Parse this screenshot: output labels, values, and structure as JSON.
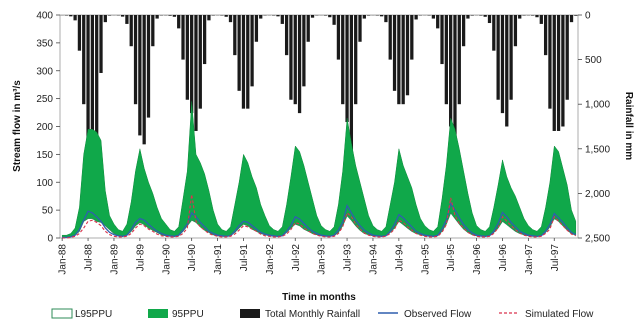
{
  "chart_data": {
    "type": "line",
    "xlabel": "Time in months",
    "ylabel": "Stream flow in m³/s",
    "y2label": "Rainfall in mm",
    "ylim": [
      0,
      400
    ],
    "yticks": [
      0,
      50,
      100,
      150,
      200,
      250,
      300,
      350,
      400
    ],
    "y2lim": [
      0,
      2500
    ],
    "y2ticks": [
      "0",
      "500",
      "1,000",
      "1,500",
      "2,000",
      "2,500"
    ],
    "y2_inverted": true,
    "x_tick_labels": [
      "Jan-88",
      "Jul-88",
      "Jan-89",
      "Jul-89",
      "Jan-90",
      "Jul-90",
      "Jan-91",
      "Jul-91",
      "Jan-92",
      "Jul-92",
      "Jan-93",
      "Jul-93",
      "Jan-94",
      "Jul-94",
      "Jan-95",
      "Jul-95",
      "Jan-96",
      "Jul-96",
      "Jan-97",
      "Jul-97"
    ],
    "legend": [
      "L95PPU",
      "95PPU",
      "Total Monthly Rainfall",
      "Observed Flow",
      "Simulated Flow"
    ],
    "legend_placement": "bottom",
    "series_colors": {
      "l95ppu": "#2e8b57",
      "band": "#10a84a",
      "rainfall": "#1a1a1a",
      "observed": "#2f5fae",
      "simulated": "#d9334d"
    },
    "months": [
      "Jan-88",
      "Feb-88",
      "Mar-88",
      "Apr-88",
      "May-88",
      "Jun-88",
      "Jul-88",
      "Aug-88",
      "Sep-88",
      "Oct-88",
      "Nov-88",
      "Dec-88",
      "Jan-89",
      "Feb-89",
      "Mar-89",
      "Apr-89",
      "May-89",
      "Jun-89",
      "Jul-89",
      "Aug-89",
      "Sep-89",
      "Oct-89",
      "Nov-89",
      "Dec-89",
      "Jan-90",
      "Feb-90",
      "Mar-90",
      "Apr-90",
      "May-90",
      "Jun-90",
      "Jul-90",
      "Aug-90",
      "Sep-90",
      "Oct-90",
      "Nov-90",
      "Dec-90",
      "Jan-91",
      "Feb-91",
      "Mar-91",
      "Apr-91",
      "May-91",
      "Jun-91",
      "Jul-91",
      "Aug-91",
      "Sep-91",
      "Oct-91",
      "Nov-91",
      "Dec-91",
      "Jan-92",
      "Feb-92",
      "Mar-92",
      "Apr-92",
      "May-92",
      "Jun-92",
      "Jul-92",
      "Aug-92",
      "Sep-92",
      "Oct-92",
      "Nov-92",
      "Dec-92",
      "Jan-93",
      "Feb-93",
      "Mar-93",
      "Apr-93",
      "May-93",
      "Jun-93",
      "Jul-93",
      "Aug-93",
      "Sep-93",
      "Oct-93",
      "Nov-93",
      "Dec-93",
      "Jan-94",
      "Feb-94",
      "Mar-94",
      "Apr-94",
      "May-94",
      "Jun-94",
      "Jul-94",
      "Aug-94",
      "Sep-94",
      "Oct-94",
      "Nov-94",
      "Dec-94",
      "Jan-95",
      "Feb-95",
      "Mar-95",
      "Apr-95",
      "May-95",
      "Jun-95",
      "Jul-95",
      "Aug-95",
      "Sep-95",
      "Oct-95",
      "Nov-95",
      "Dec-95",
      "Jan-96",
      "Feb-96",
      "Mar-96",
      "Apr-96",
      "May-96",
      "Jun-96",
      "Jul-96",
      "Aug-96",
      "Sep-96",
      "Oct-96",
      "Nov-96",
      "Dec-96",
      "Jan-97",
      "Feb-97",
      "Mar-97",
      "Apr-97",
      "May-97",
      "Jun-97",
      "Jul-97",
      "Aug-97",
      "Sep-97",
      "Oct-97",
      "Nov-97",
      "Dec-97"
    ],
    "rainfall": [
      2,
      5,
      15,
      60,
      400,
      1000,
      1500,
      1550,
      1350,
      650,
      80,
      6,
      2,
      4,
      18,
      100,
      350,
      1000,
      1350,
      1450,
      1150,
      350,
      40,
      4,
      3,
      8,
      20,
      150,
      500,
      950,
      1100,
      1300,
      1050,
      550,
      60,
      5,
      2,
      5,
      20,
      80,
      450,
      850,
      1050,
      1050,
      800,
      300,
      40,
      4,
      2,
      5,
      15,
      100,
      450,
      950,
      1000,
      1100,
      800,
      300,
      30,
      4,
      2,
      6,
      25,
      110,
      500,
      1000,
      1200,
      1550,
      1000,
      300,
      40,
      6,
      2,
      5,
      15,
      80,
      500,
      850,
      1000,
      1000,
      900,
      500,
      50,
      4,
      2,
      5,
      40,
      150,
      550,
      1000,
      1250,
      1700,
      1000,
      350,
      40,
      6,
      2,
      6,
      20,
      90,
      400,
      950,
      1100,
      1250,
      950,
      350,
      40,
      5,
      3,
      6,
      25,
      100,
      450,
      1050,
      1300,
      1300,
      1250,
      950,
      80,
      8
    ],
    "upper": [
      5,
      5,
      8,
      18,
      55,
      150,
      195,
      195,
      190,
      175,
      85,
      40,
      25,
      15,
      12,
      25,
      65,
      120,
      160,
      125,
      100,
      80,
      55,
      35,
      25,
      15,
      12,
      20,
      70,
      120,
      245,
      150,
      135,
      115,
      85,
      50,
      25,
      15,
      12,
      20,
      60,
      100,
      150,
      135,
      110,
      90,
      60,
      40,
      22,
      15,
      12,
      20,
      60,
      110,
      165,
      155,
      130,
      100,
      70,
      40,
      22,
      15,
      12,
      20,
      60,
      120,
      215,
      170,
      130,
      100,
      70,
      40,
      22,
      15,
      12,
      20,
      60,
      100,
      160,
      130,
      110,
      90,
      60,
      35,
      22,
      15,
      12,
      20,
      70,
      130,
      215,
      195,
      160,
      120,
      80,
      45,
      22,
      15,
      12,
      20,
      55,
      95,
      140,
      110,
      90,
      75,
      55,
      35,
      22,
      15,
      12,
      20,
      55,
      100,
      165,
      155,
      125,
      95,
      50,
      30
    ],
    "lower": [
      1,
      1,
      2,
      5,
      12,
      30,
      35,
      35,
      30,
      28,
      22,
      15,
      8,
      4,
      3,
      5,
      12,
      22,
      28,
      24,
      18,
      14,
      10,
      6,
      4,
      3,
      3,
      4,
      12,
      22,
      32,
      28,
      20,
      14,
      10,
      6,
      4,
      3,
      3,
      4,
      10,
      18,
      25,
      22,
      16,
      12,
      8,
      6,
      4,
      3,
      3,
      4,
      10,
      18,
      25,
      22,
      16,
      12,
      8,
      6,
      4,
      3,
      3,
      4,
      10,
      22,
      40,
      32,
      22,
      14,
      8,
      6,
      4,
      3,
      3,
      4,
      10,
      18,
      30,
      24,
      18,
      12,
      8,
      6,
      4,
      3,
      3,
      4,
      12,
      25,
      45,
      35,
      25,
      16,
      10,
      6,
      4,
      3,
      3,
      4,
      10,
      18,
      30,
      24,
      18,
      12,
      8,
      6,
      4,
      3,
      3,
      4,
      10,
      20,
      35,
      30,
      22,
      14,
      8,
      5
    ],
    "observed": [
      1,
      1,
      2,
      5,
      15,
      32,
      48,
      45,
      38,
      30,
      18,
      10,
      6,
      4,
      3,
      5,
      15,
      28,
      35,
      32,
      25,
      18,
      12,
      8,
      5,
      4,
      3,
      5,
      14,
      25,
      45,
      38,
      28,
      20,
      12,
      8,
      5,
      4,
      3,
      4,
      12,
      22,
      30,
      28,
      22,
      16,
      10,
      7,
      5,
      4,
      3,
      4,
      12,
      22,
      38,
      34,
      26,
      18,
      12,
      8,
      5,
      4,
      3,
      5,
      14,
      28,
      58,
      45,
      32,
      22,
      14,
      9,
      5,
      4,
      3,
      4,
      12,
      24,
      42,
      36,
      28,
      20,
      12,
      8,
      5,
      4,
      3,
      5,
      16,
      32,
      62,
      50,
      36,
      24,
      15,
      9,
      5,
      4,
      3,
      4,
      12,
      26,
      46,
      38,
      28,
      20,
      12,
      8,
      5,
      4,
      3,
      4,
      12,
      24,
      44,
      36,
      28,
      18,
      10,
      6
    ],
    "simulated": [
      0,
      0,
      1,
      3,
      8,
      18,
      30,
      32,
      28,
      22,
      12,
      6,
      3,
      2,
      2,
      3,
      8,
      18,
      25,
      22,
      16,
      12,
      7,
      4,
      3,
      2,
      2,
      3,
      8,
      18,
      78,
      30,
      20,
      14,
      8,
      5,
      3,
      2,
      2,
      3,
      7,
      14,
      22,
      20,
      16,
      12,
      7,
      4,
      3,
      2,
      2,
      3,
      7,
      15,
      28,
      25,
      18,
      13,
      8,
      5,
      3,
      2,
      2,
      3,
      8,
      20,
      45,
      38,
      25,
      16,
      9,
      5,
      3,
      2,
      2,
      3,
      8,
      16,
      32,
      28,
      20,
      14,
      8,
      5,
      3,
      2,
      2,
      3,
      10,
      24,
      72,
      40,
      26,
      18,
      10,
      6,
      3,
      2,
      2,
      3,
      8,
      18,
      38,
      30,
      22,
      15,
      9,
      5,
      3,
      2,
      2,
      3,
      8,
      16,
      38,
      30,
      22,
      14,
      7,
      4
    ]
  }
}
